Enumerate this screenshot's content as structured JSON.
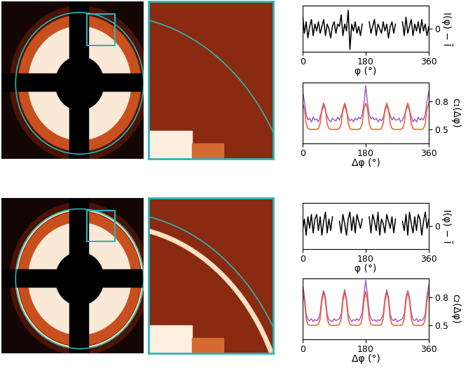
{
  "chart_data": [
    {
      "type": "line",
      "xlabel": "φ (°)",
      "ylabel": "I(φ) − Ī",
      "x": [
        0,
        5,
        10,
        15,
        20,
        25,
        30,
        35,
        40,
        45,
        50,
        55,
        60,
        65,
        70,
        75,
        80,
        85,
        90,
        95,
        100,
        105,
        110,
        115,
        120,
        125,
        130,
        135,
        140,
        145,
        150,
        155,
        160,
        165,
        170,
        175,
        180,
        185,
        190,
        195,
        200,
        205,
        210,
        215,
        220,
        225,
        230,
        235,
        240,
        245,
        250,
        255,
        260,
        265,
        270,
        275,
        280,
        285,
        290,
        295,
        300,
        305,
        310,
        315,
        320,
        325,
        330,
        335,
        340,
        345,
        350,
        355,
        360
      ],
      "xlim": [
        0,
        360
      ],
      "xticks": [
        0,
        180,
        360
      ],
      "ylim": [
        -1,
        1
      ],
      "yticks": [
        0
      ],
      "series": [
        {
          "color": "#000000",
          "values": [
            0.6,
            -0.2,
            0.3,
            -0.4,
            0.1,
            0.4,
            -0.3,
            0.2,
            -0.1,
            0.3,
            -0.2,
            0.1,
            0.4,
            -0.3,
            0.2,
            0.0,
            -0.4,
            0.1,
            0.3,
            -0.2,
            0.2,
            0.1,
            0.6,
            -0.3,
            0.2,
            -0.1,
            0.8,
            -0.9,
            0.2,
            -0.1,
            0.3,
            -0.2,
            0.1,
            -0.3,
            0.2,
            null,
            null,
            null,
            0.3,
            -0.2,
            0.1,
            0.4,
            -0.3,
            0.2,
            0.0,
            -0.2,
            0.3,
            -0.1,
            0.2,
            -0.4,
            0.1,
            0.3,
            -0.2,
            0.2,
            null,
            null,
            null,
            0.3,
            -0.3,
            0.5,
            -0.2,
            0.1,
            0.4,
            -0.3,
            0.2,
            -0.1,
            0.3,
            -0.2,
            0.4,
            -0.1,
            0.2,
            -0.3,
            0.1
          ]
        }
      ]
    },
    {
      "type": "line",
      "xlabel": "Δφ (°)",
      "ylabel": "c₁(Δφ)",
      "x": [
        0,
        5,
        10,
        15,
        20,
        25,
        30,
        35,
        40,
        45,
        50,
        55,
        60,
        65,
        70,
        75,
        80,
        85,
        90,
        95,
        100,
        105,
        110,
        115,
        120,
        125,
        130,
        135,
        140,
        145,
        150,
        155,
        160,
        165,
        170,
        175,
        180,
        185,
        190,
        195,
        200,
        205,
        210,
        215,
        220,
        225,
        230,
        235,
        240,
        245,
        250,
        255,
        260,
        265,
        270,
        275,
        280,
        285,
        290,
        295,
        300,
        305,
        310,
        315,
        320,
        325,
        330,
        335,
        340,
        345,
        350,
        355,
        360
      ],
      "xlim": [
        0,
        360
      ],
      "xticks": [
        0,
        180,
        360
      ],
      "ylim": [
        0.35,
        1.0
      ],
      "yticks": [
        0.5,
        0.8
      ],
      "series": [
        {
          "color": "#9c5fd0",
          "values": [
            0.9,
            0.8,
            0.66,
            0.6,
            0.62,
            0.58,
            0.63,
            0.6,
            0.61,
            0.58,
            0.64,
            0.7,
            0.76,
            0.7,
            0.64,
            0.6,
            0.58,
            0.62,
            0.6,
            0.59,
            0.63,
            0.6,
            0.65,
            0.7,
            0.76,
            0.69,
            0.63,
            0.59,
            0.61,
            0.58,
            0.62,
            0.6,
            0.63,
            0.61,
            0.66,
            0.78,
            0.97,
            0.78,
            0.66,
            0.61,
            0.63,
            0.6,
            0.62,
            0.58,
            0.61,
            0.59,
            0.63,
            0.69,
            0.76,
            0.7,
            0.65,
            0.6,
            0.63,
            0.6,
            0.6,
            0.62,
            0.58,
            0.6,
            0.64,
            0.7,
            0.76,
            0.7,
            0.64,
            0.58,
            0.61,
            0.58,
            0.63,
            0.6,
            0.62,
            0.6,
            0.66,
            0.8,
            0.9
          ]
        },
        {
          "color": "#f05a28",
          "values": [
            0.78,
            0.72,
            0.56,
            0.51,
            0.5,
            0.5,
            0.5,
            0.5,
            0.5,
            0.51,
            0.56,
            0.72,
            0.78,
            0.72,
            0.56,
            0.51,
            0.5,
            0.5,
            0.5,
            0.5,
            0.5,
            0.51,
            0.56,
            0.72,
            0.78,
            0.72,
            0.56,
            0.51,
            0.5,
            0.5,
            0.5,
            0.5,
            0.5,
            0.51,
            0.56,
            0.72,
            0.78,
            0.72,
            0.56,
            0.51,
            0.5,
            0.5,
            0.5,
            0.5,
            0.5,
            0.51,
            0.56,
            0.72,
            0.78,
            0.72,
            0.56,
            0.51,
            0.5,
            0.5,
            0.5,
            0.5,
            0.5,
            0.51,
            0.56,
            0.72,
            0.78,
            0.72,
            0.56,
            0.51,
            0.5,
            0.5,
            0.5,
            0.5,
            0.5,
            0.51,
            0.56,
            0.72,
            0.78
          ]
        }
      ]
    },
    {
      "type": "line",
      "xlabel": "φ (°)",
      "ylabel": "I(φ) − Ī",
      "x": [
        0,
        5,
        10,
        15,
        20,
        25,
        30,
        35,
        40,
        45,
        50,
        55,
        60,
        65,
        70,
        75,
        80,
        85,
        90,
        95,
        100,
        105,
        110,
        115,
        120,
        125,
        130,
        135,
        140,
        145,
        150,
        155,
        160,
        165,
        170,
        175,
        180,
        185,
        190,
        195,
        200,
        205,
        210,
        215,
        220,
        225,
        230,
        235,
        240,
        245,
        250,
        255,
        260,
        265,
        270,
        275,
        280,
        285,
        290,
        295,
        300,
        305,
        310,
        315,
        320,
        325,
        330,
        335,
        340,
        345,
        350,
        355,
        360
      ],
      "xlim": [
        0,
        360
      ],
      "xticks": [
        0,
        180,
        360
      ],
      "ylim": [
        -1,
        1
      ],
      "yticks": [
        0
      ],
      "series": [
        {
          "color": "#000000",
          "values": [
            -0.2,
            0.3,
            -0.4,
            0.4,
            -0.1,
            0.5,
            -0.3,
            0.3,
            0.5,
            -0.2,
            0.4,
            -0.4,
            0.2,
            0.6,
            -0.3,
            0.3,
            -0.2,
            0.4,
            null,
            null,
            null,
            0.2,
            -0.3,
            0.5,
            0.1,
            -0.4,
            0.3,
            0.6,
            -0.2,
            0.4,
            -0.3,
            0.5,
            0.2,
            -0.1,
            0.3,
            null,
            null,
            null,
            0.4,
            -0.3,
            0.5,
            0.2,
            -0.2,
            0.6,
            -0.4,
            0.3,
            0.1,
            -0.3,
            0.5,
            0.2,
            -0.1,
            0.4,
            -0.3,
            0.3,
            null,
            null,
            null,
            0.2,
            -0.2,
            0.5,
            -0.4,
            0.6,
            0.1,
            -0.3,
            0.4,
            -0.2,
            0.5,
            0.3,
            -0.4,
            0.2,
            0.6,
            -0.1,
            0.3
          ]
        }
      ]
    },
    {
      "type": "line",
      "xlabel": "Δφ (°)",
      "ylabel": "c₂(Δφ)",
      "x": [
        0,
        5,
        10,
        15,
        20,
        25,
        30,
        35,
        40,
        45,
        50,
        55,
        60,
        65,
        70,
        75,
        80,
        85,
        90,
        95,
        100,
        105,
        110,
        115,
        120,
        125,
        130,
        135,
        140,
        145,
        150,
        155,
        160,
        165,
        170,
        175,
        180,
        185,
        190,
        195,
        200,
        205,
        210,
        215,
        220,
        225,
        230,
        235,
        240,
        245,
        250,
        255,
        260,
        265,
        270,
        275,
        280,
        285,
        290,
        295,
        300,
        305,
        310,
        315,
        320,
        325,
        330,
        335,
        340,
        345,
        350,
        355,
        360
      ],
      "xlim": [
        0,
        360
      ],
      "xticks": [
        0,
        180,
        360
      ],
      "ylim": [
        0.35,
        1.0
      ],
      "yticks": [
        0.5,
        0.8
      ],
      "series": [
        {
          "color": "#9c5fd0",
          "values": [
            0.93,
            0.82,
            0.62,
            0.56,
            0.55,
            0.57,
            0.54,
            0.56,
            0.55,
            0.57,
            0.63,
            0.8,
            0.87,
            0.8,
            0.62,
            0.56,
            0.55,
            0.54,
            0.57,
            0.55,
            0.56,
            0.57,
            0.62,
            0.8,
            0.88,
            0.79,
            0.62,
            0.57,
            0.54,
            0.56,
            0.55,
            0.57,
            0.55,
            0.58,
            0.64,
            0.83,
            0.98,
            0.83,
            0.64,
            0.57,
            0.55,
            0.56,
            0.54,
            0.56,
            0.55,
            0.57,
            0.62,
            0.79,
            0.88,
            0.8,
            0.62,
            0.56,
            0.55,
            0.57,
            0.54,
            0.55,
            0.56,
            0.57,
            0.62,
            0.8,
            0.87,
            0.8,
            0.63,
            0.56,
            0.55,
            0.57,
            0.54,
            0.56,
            0.55,
            0.57,
            0.62,
            0.82,
            0.93
          ]
        },
        {
          "color": "#f05a28",
          "values": [
            0.86,
            0.76,
            0.57,
            0.51,
            0.5,
            0.5,
            0.5,
            0.5,
            0.5,
            0.51,
            0.57,
            0.76,
            0.86,
            0.76,
            0.57,
            0.51,
            0.5,
            0.5,
            0.5,
            0.5,
            0.5,
            0.51,
            0.57,
            0.76,
            0.86,
            0.76,
            0.57,
            0.51,
            0.5,
            0.5,
            0.5,
            0.5,
            0.5,
            0.51,
            0.57,
            0.76,
            0.86,
            0.76,
            0.57,
            0.51,
            0.5,
            0.5,
            0.5,
            0.5,
            0.5,
            0.51,
            0.57,
            0.76,
            0.86,
            0.76,
            0.57,
            0.51,
            0.5,
            0.5,
            0.5,
            0.5,
            0.5,
            0.51,
            0.57,
            0.76,
            0.86,
            0.76,
            0.57,
            0.51,
            0.5,
            0.5,
            0.5,
            0.5,
            0.5,
            0.51,
            0.57,
            0.76,
            0.86
          ]
        }
      ]
    }
  ]
}
